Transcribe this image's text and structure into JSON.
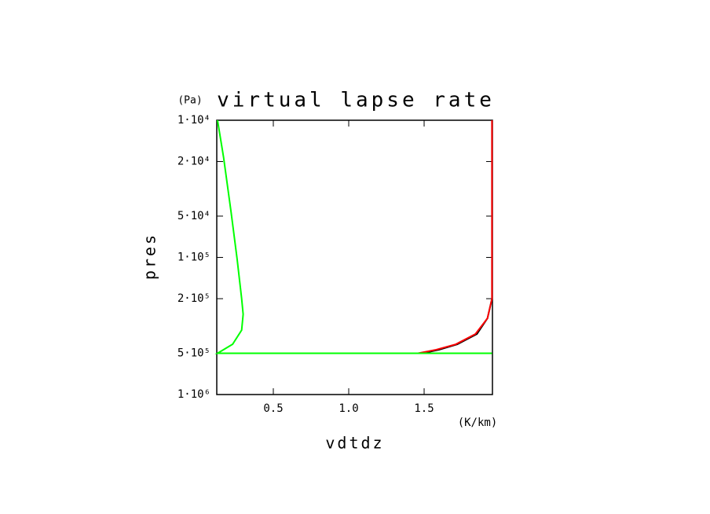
{
  "chart_data": {
    "type": "line",
    "title": "virtual lapse rate",
    "y_unit": "(Pa)",
    "x_label": "vdtdz",
    "x_unit": "(K/km)",
    "y_label": "pres",
    "xlim": [
      0.125,
      1.953
    ],
    "xticks": [
      0.5,
      {
        "value": 1,
        "label": "1.0"
      },
      1.5
    ],
    "ylim": [
      10000,
      1000000
    ],
    "ylog": true,
    "yinvert": true,
    "yticks": [
      {
        "value": 10000,
        "label": "1·10⁴"
      },
      {
        "value": 20000,
        "label": "2·10⁴"
      },
      {
        "value": 50000,
        "label": "5·10⁴"
      },
      {
        "value": 100000,
        "label": "1·10⁵"
      },
      {
        "value": 200000,
        "label": "2·10⁵"
      },
      {
        "value": 500000,
        "label": "5·10⁵"
      },
      {
        "value": 1000000,
        "label": "1·10⁶"
      }
    ],
    "series": [
      {
        "color": "#000000",
        "x": [
          1.95,
          1.95,
          1.95,
          1.92,
          1.85,
          1.72,
          1.6,
          1.49
        ],
        "y": [
          10000,
          135000,
          200000,
          278000,
          362000,
          430000,
          471000,
          500000
        ]
      },
      {
        "color": "#ff0000",
        "x": [
          1.95,
          1.95,
          1.95,
          1.92,
          1.84,
          1.71,
          1.58,
          1.46
        ],
        "y": [
          10000,
          135000,
          200000,
          278000,
          362000,
          430000,
          471000,
          500000
        ]
      },
      {
        "color": "#00ff00",
        "x": [
          0.13,
          0.17,
          0.22,
          0.26,
          0.29,
          0.3,
          0.29,
          0.23,
          0.13,
          1.95
        ],
        "y": [
          10000,
          18600,
          46800,
          103000,
          200000,
          260000,
          339000,
          430000,
          500000,
          500000
        ]
      }
    ]
  }
}
